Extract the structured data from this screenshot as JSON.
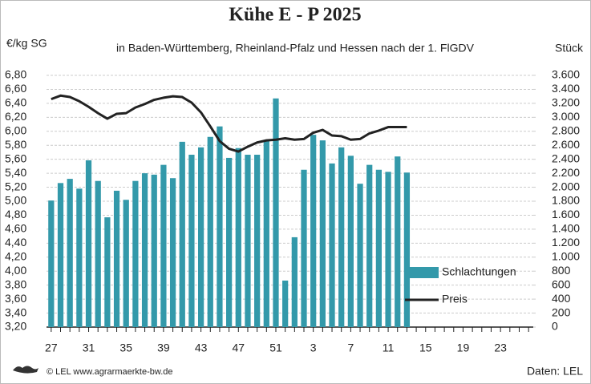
{
  "chart_data": {
    "type": "bar-line",
    "title": "Kühe E - P 2025",
    "subtitle": "in Baden-Württemberg, Rheinland-Pfalz und Hessen nach der 1. FlGDV",
    "y_label": "€/kg SG",
    "y2_label": "Stück",
    "source_left": "© LEL www.agrarmaerkte-bw.de",
    "source_right": "Daten: LEL",
    "categories": [
      "27",
      null,
      null,
      null,
      "31",
      null,
      null,
      null,
      "35",
      null,
      null,
      null,
      "39",
      null,
      null,
      null,
      "43",
      null,
      null,
      null,
      "47",
      null,
      null,
      null,
      "51",
      null,
      null,
      null,
      "3",
      null,
      null,
      null,
      "7",
      null,
      null,
      null,
      "11",
      null,
      null,
      null,
      "15",
      null,
      null,
      null,
      "19",
      null,
      null,
      null,
      "23",
      null,
      null,
      null
    ],
    "series": [
      {
        "name": "Schlachtungen",
        "type": "bar",
        "axis": "y2",
        "color": "#3399aa",
        "values": [
          1810,
          2060,
          2120,
          1980,
          2385,
          2090,
          1570,
          1950,
          1820,
          2090,
          2200,
          2180,
          2320,
          2130,
          2650,
          2465,
          2570,
          2720,
          2870,
          2420,
          2560,
          2465,
          2465,
          2670,
          3270,
          665,
          1285,
          2250,
          2750,
          2670,
          2340,
          2570,
          2450,
          2050,
          2320,
          2250,
          2220,
          2440,
          2210,
          null,
          null,
          null,
          null,
          null,
          null,
          null,
          null,
          null,
          null,
          null,
          null,
          null
        ]
      },
      {
        "name": "Preis",
        "type": "line",
        "axis": "y",
        "color": "#222222",
        "values": [
          6.46,
          6.51,
          6.49,
          6.43,
          6.35,
          6.26,
          6.18,
          6.25,
          6.26,
          6.34,
          6.39,
          6.45,
          6.48,
          6.5,
          6.49,
          6.41,
          6.27,
          6.07,
          5.86,
          5.75,
          5.71,
          5.78,
          5.84,
          5.87,
          5.88,
          5.9,
          5.88,
          5.89,
          5.98,
          6.02,
          5.94,
          5.93,
          5.88,
          5.89,
          5.97,
          6.01,
          6.06,
          6.06,
          6.06,
          null,
          null,
          null,
          null,
          null,
          null,
          null,
          null,
          null,
          null,
          null,
          null,
          null
        ]
      }
    ],
    "ylim": [
      3.2,
      6.8
    ],
    "yticks": [
      {
        "value": 3.2,
        "label": "3,20"
      },
      {
        "value": 3.4,
        "label": "3,40"
      },
      {
        "value": 3.6,
        "label": "3,60"
      },
      {
        "value": 3.8,
        "label": "3,80"
      },
      {
        "value": 4.0,
        "label": "4,00"
      },
      {
        "value": 4.2,
        "label": "4,20"
      },
      {
        "value": 4.4,
        "label": "4,40"
      },
      {
        "value": 4.6,
        "label": "4,60"
      },
      {
        "value": 4.8,
        "label": "4,80"
      },
      {
        "value": 5.0,
        "label": "5,00"
      },
      {
        "value": 5.2,
        "label": "5,20"
      },
      {
        "value": 5.4,
        "label": "5,40"
      },
      {
        "value": 5.6,
        "label": "5,60"
      },
      {
        "value": 5.8,
        "label": "5,80"
      },
      {
        "value": 6.0,
        "label": "6,00"
      },
      {
        "value": 6.2,
        "label": "6,20"
      },
      {
        "value": 6.4,
        "label": "6,40"
      },
      {
        "value": 6.6,
        "label": "6,60"
      },
      {
        "value": 6.8,
        "label": "6,80"
      }
    ],
    "y2lim": [
      0,
      3600
    ],
    "y2ticks": [
      0,
      200,
      400,
      600,
      800,
      {
        "value": 1000,
        "label": "1.000"
      },
      {
        "value": 1200,
        "label": "1.200"
      },
      {
        "value": 1400,
        "label": "1.400"
      },
      {
        "value": 1600,
        "label": "1.600"
      },
      {
        "value": 1800,
        "label": "1.800"
      },
      {
        "value": 2000,
        "label": "2.000"
      },
      {
        "value": 2200,
        "label": "2.200"
      },
      {
        "value": 2400,
        "label": "2.400"
      },
      {
        "value": 2600,
        "label": "2.600"
      },
      {
        "value": 2800,
        "label": "2.800"
      },
      {
        "value": 3000,
        "label": "3.000"
      },
      {
        "value": 3200,
        "label": "3.200"
      },
      {
        "value": 3400,
        "label": "3.400"
      },
      {
        "value": 3600,
        "label": "3.600"
      }
    ],
    "grid": true,
    "legend": "right"
  }
}
